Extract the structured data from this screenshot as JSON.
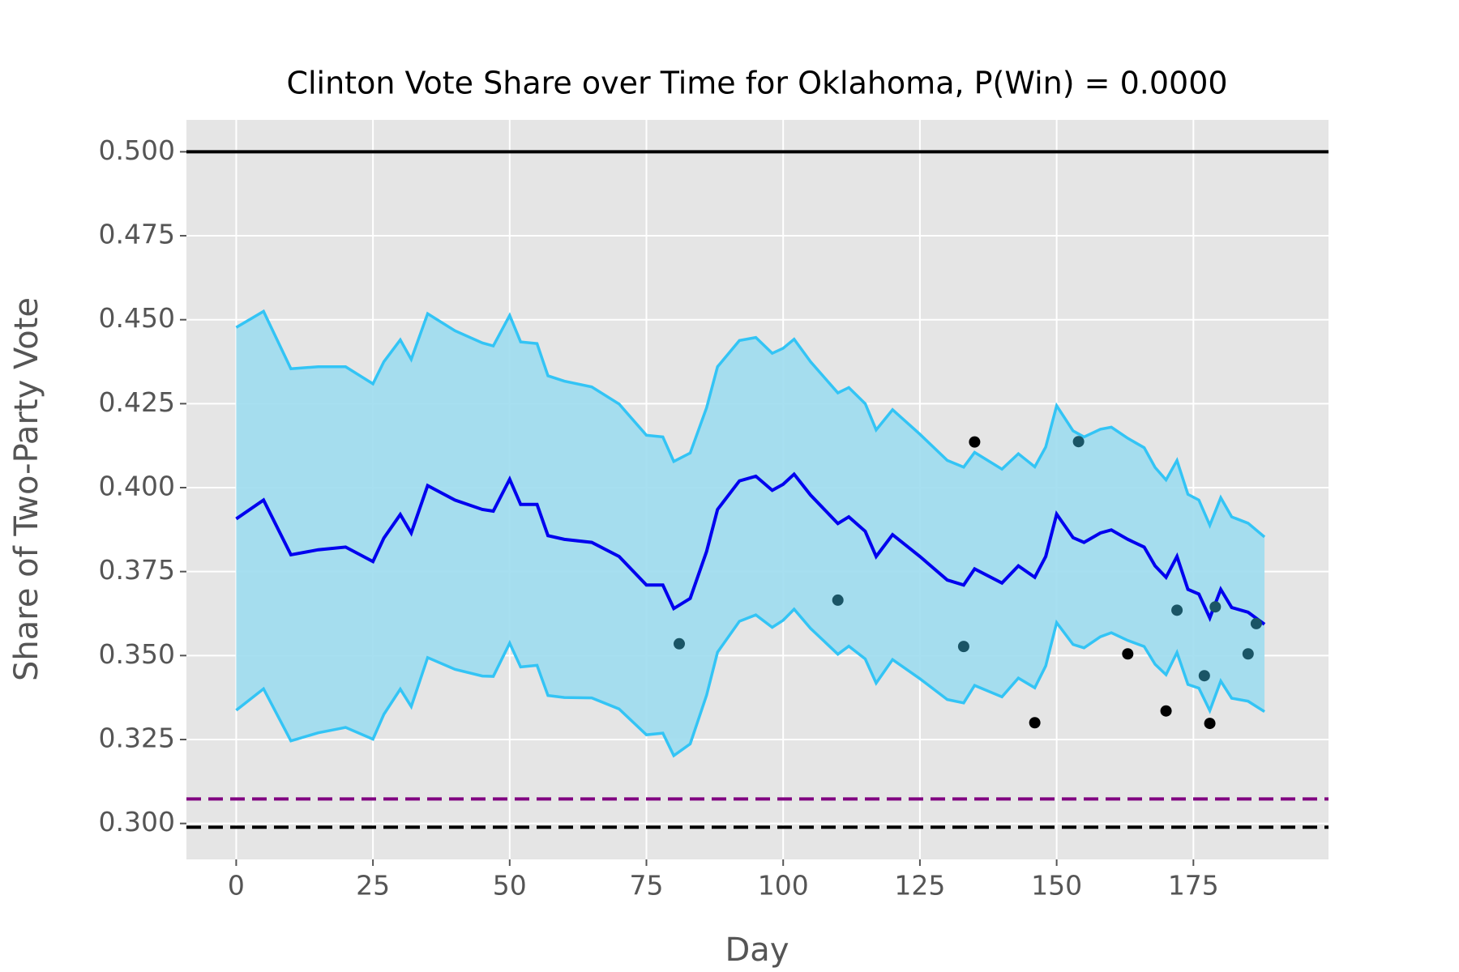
{
  "chart_data": {
    "type": "line",
    "title": "Clinton Vote Share over Time for Oklahoma, P(Win) = 0.0000",
    "x_label": "Day",
    "y_label": "Share of Two-Party Vote",
    "xlim": [
      -9.1,
      199.7
    ],
    "ylim": [
      0.2893,
      0.5095
    ],
    "xticks": [
      0,
      25,
      50,
      75,
      100,
      125,
      150,
      175
    ],
    "yticks": [
      {
        "value": 0.3,
        "label": "0.300"
      },
      {
        "value": 0.325,
        "label": "0.325"
      },
      {
        "value": 0.35,
        "label": "0.350"
      },
      {
        "value": 0.375,
        "label": "0.375"
      },
      {
        "value": 0.4,
        "label": "0.400"
      },
      {
        "value": 0.425,
        "label": "0.425"
      },
      {
        "value": 0.45,
        "label": "0.450"
      },
      {
        "value": 0.475,
        "label": "0.475"
      },
      {
        "value": 0.5,
        "label": "0.500"
      }
    ],
    "grid": true,
    "fill_between": true,
    "band_color": "#9ddcee",
    "x": [
      0,
      5,
      10,
      15,
      20,
      25,
      27,
      30,
      32,
      35,
      40,
      45,
      47,
      50,
      52,
      55,
      57,
      60,
      65,
      70,
      75,
      78,
      80,
      83,
      86,
      88,
      92,
      95,
      98,
      100,
      102,
      105,
      110,
      112,
      115,
      117,
      120,
      125,
      130,
      133,
      135,
      140,
      143,
      146,
      148,
      150,
      153,
      155,
      158,
      160,
      163,
      166,
      168,
      170,
      172,
      174,
      176,
      178,
      180,
      182,
      185,
      188
    ],
    "series": [
      {
        "color": "#0000ee",
        "values": [
          0.3907,
          0.3963,
          0.38,
          0.3815,
          0.3823,
          0.378,
          0.385,
          0.392,
          0.3865,
          0.4006,
          0.3963,
          0.3935,
          0.393,
          0.4025,
          0.395,
          0.395,
          0.3857,
          0.3846,
          0.3837,
          0.3795,
          0.371,
          0.371,
          0.364,
          0.367,
          0.381,
          0.3935,
          0.402,
          0.4034,
          0.3992,
          0.401,
          0.404,
          0.3978,
          0.3893,
          0.3913,
          0.387,
          0.3795,
          0.386,
          0.3795,
          0.3725,
          0.371,
          0.3758,
          0.3716,
          0.3767,
          0.3733,
          0.3795,
          0.3921,
          0.3851,
          0.3837,
          0.3865,
          0.3874,
          0.3846,
          0.3823,
          0.3767,
          0.3733,
          0.3795,
          0.3697,
          0.3683,
          0.3612,
          0.3697,
          0.3643,
          0.3629,
          0.3593
        ]
      },
      {
        "color": "#33c4f5",
        "values": [
          0.4477,
          0.4525,
          0.4354,
          0.436,
          0.436,
          0.4309,
          0.4375,
          0.444,
          0.4382,
          0.4518,
          0.4467,
          0.4431,
          0.4422,
          0.4513,
          0.4434,
          0.4429,
          0.4333,
          0.4317,
          0.43,
          0.4249,
          0.4156,
          0.4151,
          0.4078,
          0.4103,
          0.4238,
          0.436,
          0.4438,
          0.4447,
          0.44,
          0.4415,
          0.4442,
          0.4375,
          0.4282,
          0.4298,
          0.425,
          0.4172,
          0.4232,
          0.4159,
          0.4081,
          0.4061,
          0.4105,
          0.4055,
          0.4101,
          0.4062,
          0.4121,
          0.4244,
          0.4169,
          0.4151,
          0.4174,
          0.418,
          0.4147,
          0.4119,
          0.406,
          0.4023,
          0.4081,
          0.398,
          0.3963,
          0.3888,
          0.397,
          0.3913,
          0.3894,
          0.3853
        ]
      },
      {
        "color": "#33c4f5",
        "values": [
          0.3337,
          0.3401,
          0.3246,
          0.327,
          0.3286,
          0.3251,
          0.3325,
          0.34,
          0.3348,
          0.3494,
          0.3459,
          0.3439,
          0.3438,
          0.3537,
          0.3466,
          0.3471,
          0.3381,
          0.3375,
          0.3374,
          0.3341,
          0.3264,
          0.3269,
          0.3202,
          0.3237,
          0.3382,
          0.351,
          0.3602,
          0.3621,
          0.3584,
          0.3605,
          0.3638,
          0.3581,
          0.3504,
          0.3528,
          0.349,
          0.3418,
          0.3488,
          0.3431,
          0.3369,
          0.3359,
          0.3411,
          0.3377,
          0.3433,
          0.3404,
          0.3469,
          0.3598,
          0.3533,
          0.3523,
          0.3556,
          0.3568,
          0.3545,
          0.3527,
          0.3474,
          0.3443,
          0.3509,
          0.3414,
          0.3403,
          0.3336,
          0.3424,
          0.3373,
          0.3364,
          0.3333
        ]
      }
    ],
    "points": [
      {
        "color": "#000000",
        "x": [
          135,
          146,
          163,
          170,
          178
        ],
        "y": [
          0.4136,
          0.33,
          0.3505,
          0.3335,
          0.3298
        ]
      },
      {
        "color": "#1a5566",
        "x": [
          81,
          110,
          133,
          154,
          172,
          177,
          179,
          185,
          186.5
        ],
        "y": [
          0.3535,
          0.3665,
          0.3527,
          0.4137,
          0.3635,
          0.344,
          0.3645,
          0.3505,
          0.3595
        ]
      }
    ],
    "hlines": [
      {
        "value": 0.5,
        "color": "#000000",
        "dashed": false
      },
      {
        "value": 0.3073,
        "color": "#800080",
        "dashed": true
      },
      {
        "value": 0.2989,
        "color": "#000000",
        "dashed": true
      }
    ]
  }
}
